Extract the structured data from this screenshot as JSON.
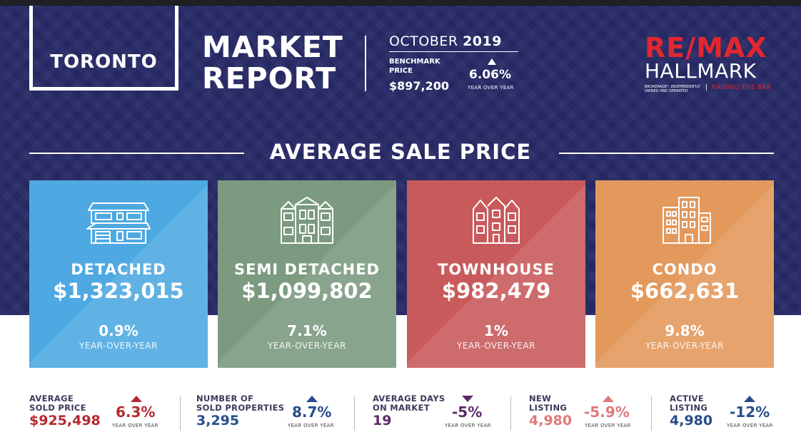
{
  "header": {
    "city": "TORONTO",
    "title_line1": "MARKET",
    "title_line2": "REPORT",
    "month": "OCTOBER",
    "year": "2019",
    "benchmark_label": "BENCHMARK PRICE",
    "benchmark_price": "$897,200",
    "benchmark_change": "6.06%",
    "benchmark_change_label": "YEAR OVER YEAR"
  },
  "logo": {
    "brand": "RE/MAX",
    "office": "HALLMARK",
    "small_text": "BROKERAGE*, INDEPENDENTLY OWNED AND OPERATED",
    "separator": "|",
    "tagline": "RAISING THE BAR"
  },
  "section": {
    "title": "AVERAGE SALE PRICE"
  },
  "cards": [
    {
      "name": "DETACHED",
      "price": "$1,323,015",
      "change": "0.9%",
      "change_label": "YEAR-OVER-YEAR",
      "color": "#4ea9e2",
      "icon": "detached-house-icon"
    },
    {
      "name": "SEMI DETACHED",
      "price": "$1,099,802",
      "change": "7.1%",
      "change_label": "YEAR-OVER-YEAR",
      "color": "#7c9a7f",
      "icon": "semi-detached-house-icon"
    },
    {
      "name": "TOWNHOUSE",
      "price": "$982,479",
      "change": "1%",
      "change_label": "YEAR-OVER-YEAR",
      "color": "#c95a5c",
      "icon": "townhouse-icon"
    },
    {
      "name": "CONDO",
      "price": "$662,631",
      "change": "9.8%",
      "change_label": "YEAR-OVER-YEAR",
      "color": "#e3995c",
      "icon": "condo-building-icon"
    }
  ],
  "stats": [
    {
      "label_line1": "AVERAGE",
      "label_line2": "SOLD PRICE",
      "value": "$925,498",
      "change": "6.3%",
      "change_label": "YEAR OVER YEAR",
      "direction": "up",
      "value_color": "#b5292e",
      "change_color": "#b5292e"
    },
    {
      "label_line1": "NUMBER OF",
      "label_line2": "SOLD PROPERTIES",
      "value": "3,295",
      "change": "8.7%",
      "change_label": "YEAR OVER YEAR",
      "direction": "up",
      "value_color": "#274d8c",
      "change_color": "#274d8c"
    },
    {
      "label_line1": "AVERAGE DAYS",
      "label_line2": "ON MARKET",
      "value": "19",
      "change": "-5%",
      "change_label": "YEAR OVER YEAR",
      "direction": "down",
      "value_color": "#5d2a6b",
      "change_color": "#5d2a6b"
    },
    {
      "label_line1": "NEW",
      "label_line2": "LISTING",
      "value": "4,980",
      "change": "-5.9%",
      "change_label": "YEAR OVER YEAR",
      "direction": "up",
      "value_color": "#e07a7a",
      "change_color": "#e07a7a"
    },
    {
      "label_line1": "ACTIVE",
      "label_line2": "LISTING",
      "value": "4,980",
      "change": "-12%",
      "change_label": "YEAR OVER YEAR",
      "direction": "up",
      "value_color": "#274d8c",
      "change_color": "#274d8c"
    }
  ],
  "colors": {
    "navy": "#272a66",
    "brand_red": "#e4262f",
    "label_dark": "#3a3a5c"
  }
}
